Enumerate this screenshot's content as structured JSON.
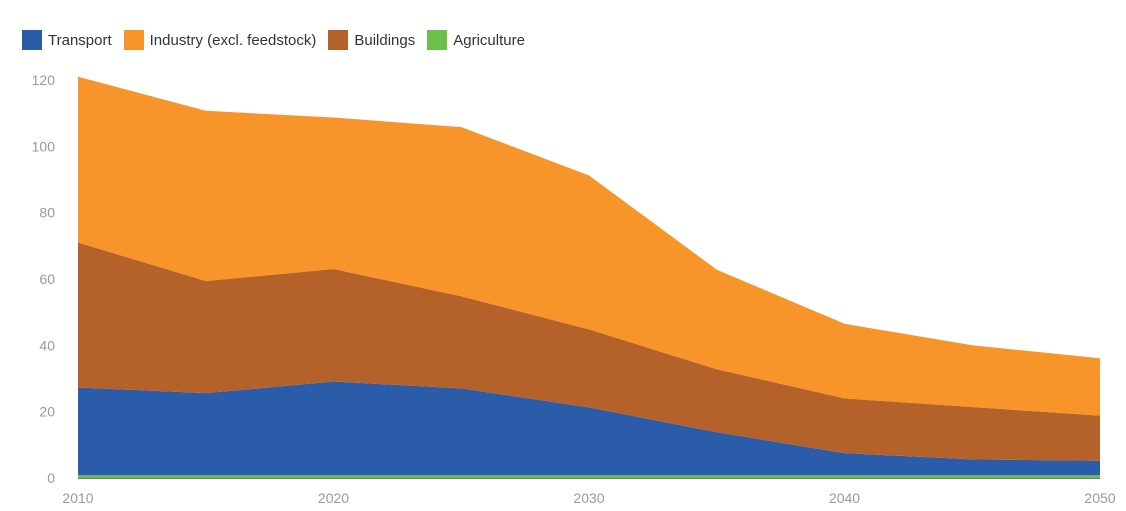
{
  "chart_data": {
    "type": "area",
    "stacked": true,
    "legend_position": "top-left",
    "x": [
      2010,
      2015,
      2020,
      2025,
      2030,
      2035,
      2040,
      2045,
      2050
    ],
    "series": [
      {
        "name": "Agriculture",
        "color": "#6cc04a",
        "values": [
          0.8,
          0.8,
          0.8,
          0.8,
          0.8,
          0.8,
          0.8,
          0.8,
          0.8
        ]
      },
      {
        "name": "Transport",
        "color": "#2a5caa",
        "values": [
          26.5,
          24.8,
          28.3,
          26.2,
          20.5,
          13.0,
          6.7,
          4.8,
          4.4
        ]
      },
      {
        "name": "Buildings",
        "color": "#b5612a",
        "values": [
          43.7,
          33.8,
          33.9,
          27.8,
          23.5,
          19.0,
          16.5,
          15.8,
          13.6
        ]
      },
      {
        "name": "Industry (excl. feedstock)",
        "color": "#f7952a",
        "values": [
          50.0,
          51.3,
          45.7,
          51.0,
          46.4,
          30.0,
          22.5,
          18.6,
          17.3
        ]
      }
    ],
    "legend_order": [
      "Transport",
      "Industry (excl. feedstock)",
      "Buildings",
      "Agriculture"
    ],
    "ylim": [
      0,
      120
    ],
    "yticks": [
      0,
      20,
      40,
      60,
      80,
      100,
      120
    ],
    "xticks": [
      2010,
      2020,
      2030,
      2040,
      2050
    ],
    "grid": false,
    "title": "",
    "xlabel": "",
    "ylabel": ""
  }
}
